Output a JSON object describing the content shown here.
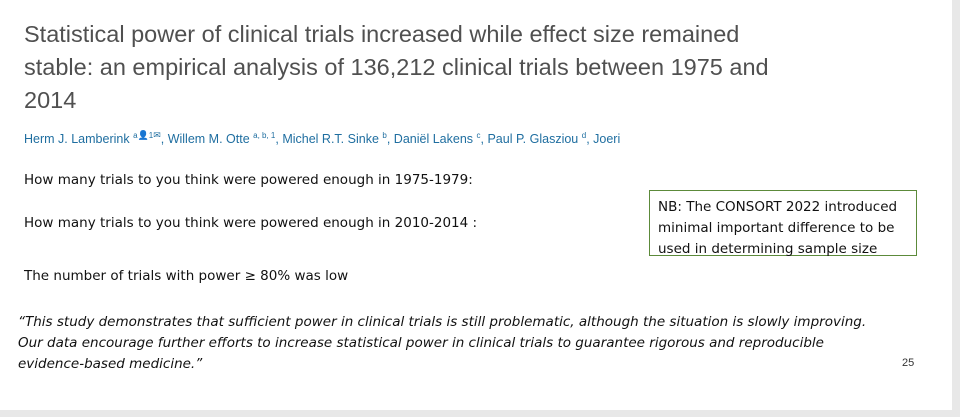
{
  "slide": {
    "title": "Statistical power of clinical trials increased while effect size remained stable: an empirical analysis of 136,212 clinical trials between 1975 and 2014",
    "authors": [
      {
        "name": "Herm J. Lamberink",
        "sup": "a",
        "glyphs": " ὆4 1 ✉"
      },
      {
        "name": "Willem M. Otte",
        "sup": "a, b, 1"
      },
      {
        "name": "Michel R.T. Sinke",
        "sup": "b"
      },
      {
        "name": "Daniël Lakens",
        "sup": "c"
      },
      {
        "name": "Paul P. Glasziou",
        "sup": "d"
      },
      {
        "name": "Joeri",
        "sup": ""
      }
    ],
    "question_1": "How many trials to you think were powered enough in 1975-1979:",
    "question_2": "How many trials to you think were powered enough in 2010-2014 :",
    "statement": "The number of trials with power ≥ 80% was low",
    "nb_note": "NB: The CONSORT 2022 introduced minimal important difference to be used in determining sample size",
    "quote": "“This study demonstrates that sufficient power in clinical trials is still problematic, although the situation is slowly improving. Our data encourage further efforts to increase statistical power in clinical trials to guarantee rigorous and reproducible evidence-based medicine.”",
    "page_number": "25"
  }
}
